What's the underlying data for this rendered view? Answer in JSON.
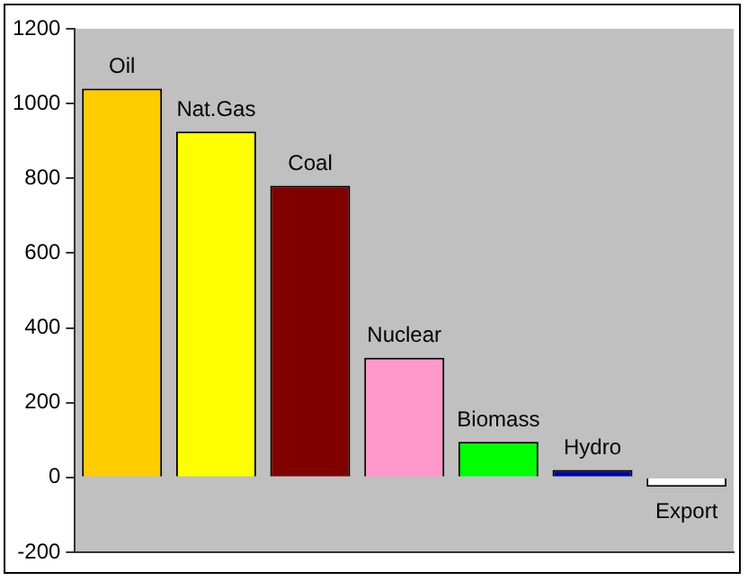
{
  "chart_data": {
    "type": "bar",
    "categories": [
      "Oil",
      "Nat.Gas",
      "Coal",
      "Nuclear",
      "Biomass",
      "Hydro",
      "Export"
    ],
    "values": [
      1040,
      925,
      780,
      320,
      95,
      20,
      -25
    ],
    "colors": [
      "#ffcc00",
      "#ffff00",
      "#800000",
      "#ff99cc",
      "#00ff00",
      "#0000a0",
      "#ffffff"
    ],
    "ylim": [
      -200,
      1200
    ],
    "yticks": [
      -200,
      0,
      200,
      400,
      600,
      800,
      1000,
      1200
    ],
    "grid": false,
    "tick_labels": "y",
    "legend": false
  }
}
